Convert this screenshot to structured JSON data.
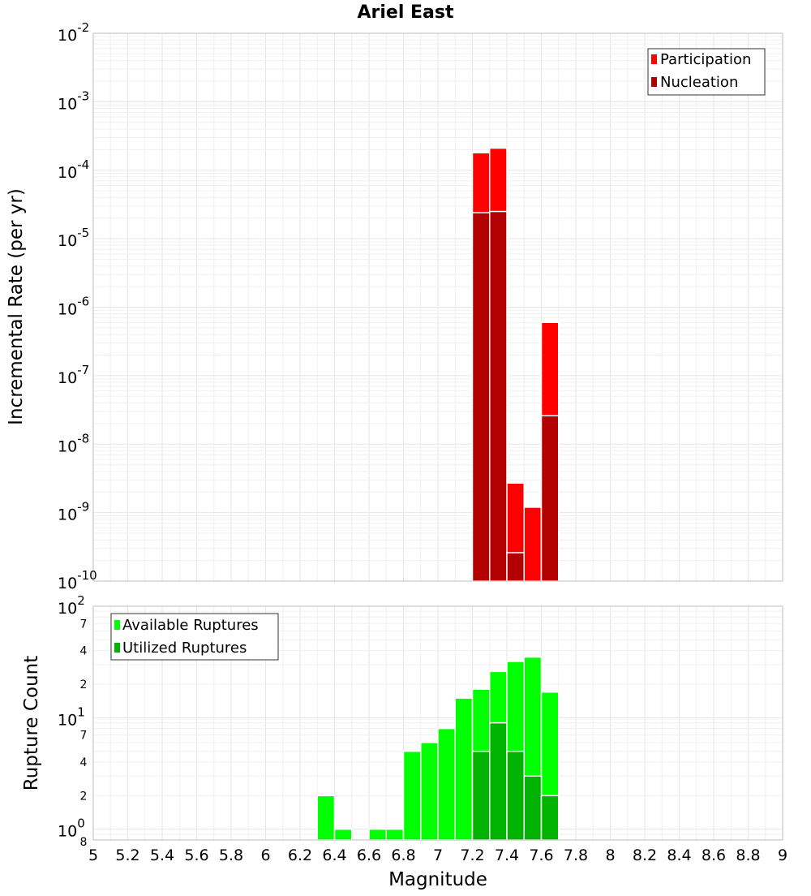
{
  "chart_data": [
    {
      "type": "bar",
      "title": "Ariel East",
      "ylabel": "Incremental Rate (per yr)",
      "yscale": "log",
      "ylim": [
        1e-10,
        0.01
      ],
      "xlim": [
        5,
        9
      ],
      "bar_width": 0.1,
      "series": [
        {
          "name": "Participation",
          "color": "#ff0000",
          "x": [
            7.25,
            7.35,
            7.45,
            7.55,
            7.65
          ],
          "values": [
            0.00018,
            0.00021,
            2.7e-09,
            1.2e-09,
            6e-07
          ]
        },
        {
          "name": "Nucleation",
          "color": "#b30000",
          "x": [
            7.25,
            7.35,
            7.45,
            7.65
          ],
          "values": [
            2.4e-05,
            2.5e-05,
            2.6e-10,
            2.6e-08
          ]
        }
      ],
      "legend": "top-right",
      "grid": true
    },
    {
      "type": "bar",
      "xlabel": "Magnitude",
      "ylabel": "Rupture Count",
      "yscale": "log",
      "ylim": [
        0.8,
        100
      ],
      "xlim": [
        5,
        9
      ],
      "bar_width": 0.1,
      "series": [
        {
          "name": "Available Ruptures",
          "color": "#00ff00",
          "x": [
            6.35,
            6.45,
            6.65,
            6.75,
            6.85,
            6.95,
            7.05,
            7.15,
            7.25,
            7.35,
            7.45,
            7.55,
            7.65
          ],
          "values": [
            2,
            1,
            1,
            1,
            5,
            6,
            8,
            15,
            18,
            26,
            32,
            35,
            17
          ]
        },
        {
          "name": "Utilized Ruptures",
          "color": "#00b300",
          "x": [
            7.25,
            7.35,
            7.45,
            7.55,
            7.65
          ],
          "values": [
            5,
            9,
            5,
            3,
            2
          ]
        }
      ],
      "legend": "top-left",
      "grid": true
    }
  ],
  "x_ticks": [
    "5",
    "5.2",
    "5.4",
    "5.6",
    "5.8",
    "6",
    "6.2",
    "6.4",
    "6.6",
    "6.8",
    "7",
    "7.2",
    "7.4",
    "7.6",
    "7.8",
    "8",
    "8.2",
    "8.4",
    "8.6",
    "8.8",
    "9"
  ],
  "top_y_ticks": [
    {
      "base": "10",
      "exp": "-2"
    },
    {
      "base": "10",
      "exp": "-3"
    },
    {
      "base": "10",
      "exp": "-4"
    },
    {
      "base": "10",
      "exp": "-5"
    },
    {
      "base": "10",
      "exp": "-6"
    },
    {
      "base": "10",
      "exp": "-7"
    },
    {
      "base": "10",
      "exp": "-8"
    },
    {
      "base": "10",
      "exp": "-9"
    },
    {
      "base": "10",
      "exp": "-10"
    }
  ],
  "bottom_y_ticks": {
    "major": [
      {
        "base": "10",
        "exp": "2",
        "value": 100
      },
      {
        "base": "10",
        "exp": "1",
        "value": 10
      },
      {
        "base": "10",
        "exp": "0",
        "value": 1
      }
    ],
    "minor": [
      {
        "label": "7",
        "value": 70
      },
      {
        "label": "4",
        "value": 40
      },
      {
        "label": "2",
        "value": 20
      },
      {
        "label": "7",
        "value": 7
      },
      {
        "label": "4",
        "value": 4
      },
      {
        "label": "2",
        "value": 2
      },
      {
        "label": "8",
        "value": 0.8
      }
    ]
  }
}
